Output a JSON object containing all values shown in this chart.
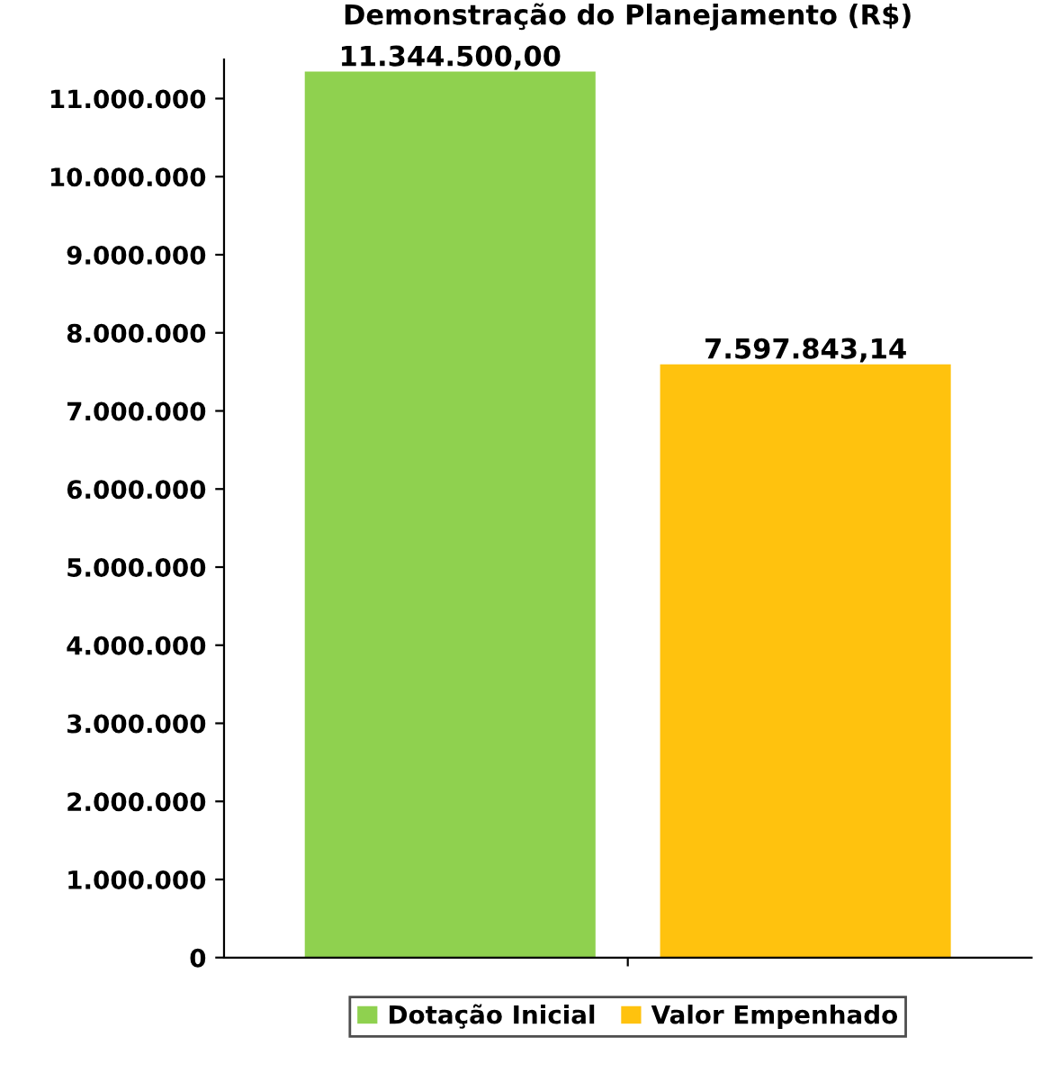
{
  "chart_data": {
    "type": "bar",
    "title": "Demonstração do Planejamento (R$)",
    "categories": [
      null
    ],
    "series": [
      {
        "name": "Dotação Inicial",
        "color": "#8fd14f",
        "values": [
          11344500.0
        ],
        "value_labels": [
          "11.344.500,00"
        ]
      },
      {
        "name": "Valor Empenhado",
        "color": "#ffc20e",
        "values": [
          7597843.14
        ],
        "value_labels": [
          "7.597.843,14"
        ]
      }
    ],
    "ylim": [
      0,
      11500000
    ],
    "yticks": [
      {
        "value": 0,
        "label": "0"
      },
      {
        "value": 1000000,
        "label": "1.000.000"
      },
      {
        "value": 2000000,
        "label": "2.000.000"
      },
      {
        "value": 3000000,
        "label": "3.000.000"
      },
      {
        "value": 4000000,
        "label": "4.000.000"
      },
      {
        "value": 5000000,
        "label": "5.000.000"
      },
      {
        "value": 6000000,
        "label": "6.000.000"
      },
      {
        "value": 7000000,
        "label": "7.000.000"
      },
      {
        "value": 8000000,
        "label": "8.000.000"
      },
      {
        "value": 9000000,
        "label": "9.000.000"
      },
      {
        "value": 10000000,
        "label": "10.000.000"
      },
      {
        "value": 11000000,
        "label": "11.000.000"
      }
    ],
    "legend": "bottom",
    "grid": false
  }
}
